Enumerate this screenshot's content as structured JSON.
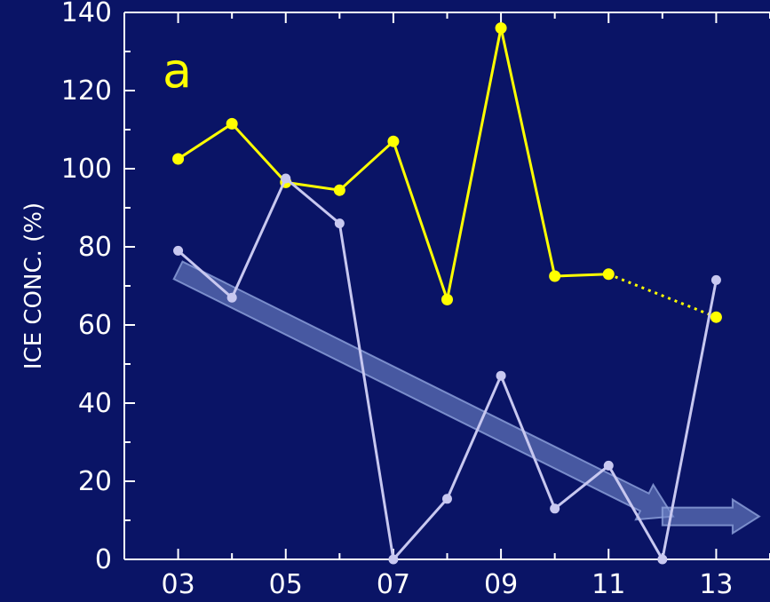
{
  "chart_data": {
    "type": "line",
    "title": "",
    "panel_label": "a",
    "ylabel": "ICE CONC. (%)",
    "xlabel": "",
    "x": [
      3,
      4,
      5,
      6,
      7,
      8,
      9,
      10,
      11,
      12,
      13
    ],
    "xticks": [
      3,
      5,
      7,
      9,
      11,
      13
    ],
    "xtick_labels": [
      "03",
      "05",
      "07",
      "09",
      "11",
      "13"
    ],
    "xlim": [
      2,
      14
    ],
    "ylim": [
      0,
      140
    ],
    "yticks": [
      0,
      20,
      40,
      60,
      80,
      100,
      120,
      140
    ],
    "ytick_labels": [
      "0",
      "20",
      "40",
      "60",
      "80",
      "100",
      "120",
      "140"
    ],
    "grid": false,
    "series": [
      {
        "color": "#ffff00",
        "points": [
          [
            3,
            102.5
          ],
          [
            4,
            111.5
          ],
          [
            5,
            96.5
          ],
          [
            6,
            94.5
          ],
          [
            7,
            107
          ],
          [
            8,
            66.5
          ],
          [
            9,
            136
          ],
          [
            10,
            72.5
          ],
          [
            11,
            73
          ],
          [
            13,
            62
          ]
        ],
        "dotted_segment": [
          11,
          13
        ]
      },
      {
        "color": "#c8c8f0",
        "points": [
          [
            3,
            79
          ],
          [
            4,
            67
          ],
          [
            5,
            97.5
          ],
          [
            6,
            86
          ],
          [
            7,
            0
          ],
          [
            8,
            15.5
          ],
          [
            9,
            47
          ],
          [
            10,
            13
          ],
          [
            11,
            24
          ],
          [
            12,
            0
          ],
          [
            13,
            71.5
          ]
        ]
      }
    ],
    "annotations": {
      "trend_arrow": {
        "from": [
          3,
          74
        ],
        "to": [
          12.2,
          11
        ],
        "color": "#6f86c8"
      },
      "continuation_arrow": {
        "from": [
          12,
          11
        ],
        "to": [
          13.8,
          11
        ],
        "color": "#6f86c8"
      }
    },
    "colors": {
      "background": "#0a1466",
      "axis": "#ffffff",
      "panel_label": "#ffff00"
    }
  }
}
